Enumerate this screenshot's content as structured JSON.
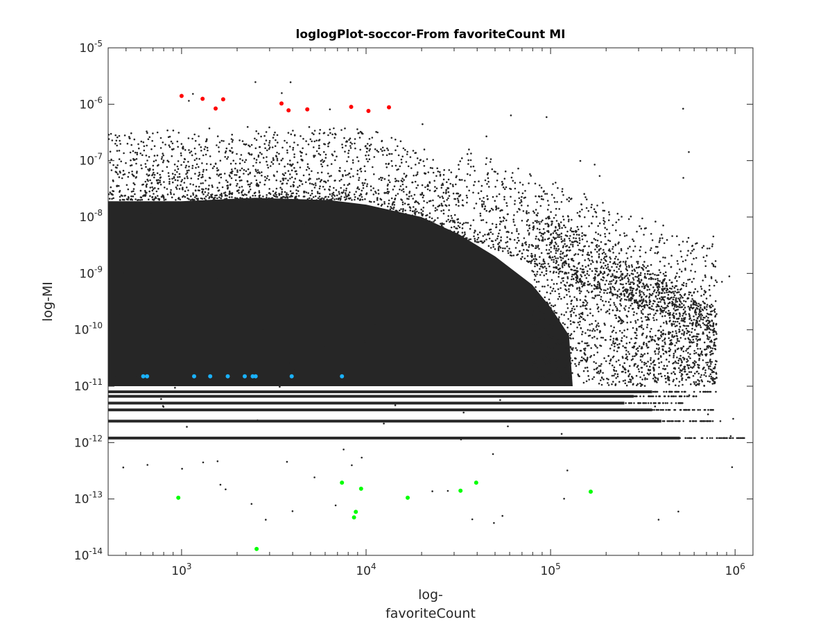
{
  "chart_data": {
    "type": "scatter",
    "title": "loglogPlot-soccor-From favoriteCount MI",
    "xlabel_line1": "log-",
    "xlabel_line2": "favoriteCount",
    "ylabel": "log-MI",
    "x_scale": "log",
    "y_scale": "log",
    "xlim": [
      400,
      1250000
    ],
    "ylim": [
      1e-14,
      1e-05
    ],
    "x_ticks": [
      {
        "value": 1000,
        "base": "10",
        "exp": "3"
      },
      {
        "value": 10000,
        "base": "10",
        "exp": "4"
      },
      {
        "value": 100000,
        "base": "10",
        "exp": "5"
      },
      {
        "value": 1000000,
        "base": "10",
        "exp": "6"
      }
    ],
    "y_ticks": [
      {
        "value": 1e-14,
        "base": "10",
        "exp": "-14"
      },
      {
        "value": 1e-13,
        "base": "10",
        "exp": "-13"
      },
      {
        "value": 1e-12,
        "base": "10",
        "exp": "-12"
      },
      {
        "value": 1e-11,
        "base": "10",
        "exp": "-11"
      },
      {
        "value": 1e-10,
        "base": "10",
        "exp": "-10"
      },
      {
        "value": 1e-09,
        "base": "10",
        "exp": "-9"
      },
      {
        "value": 1e-08,
        "base": "10",
        "exp": "-8"
      },
      {
        "value": 1e-07,
        "base": "10",
        "exp": "-7"
      },
      {
        "value": 1e-06,
        "base": "10",
        "exp": "-6"
      },
      {
        "value": 1e-05,
        "base": "10",
        "exp": "-5"
      }
    ],
    "grid": false,
    "colors": {
      "background": "#262626",
      "top": "#ff0000",
      "middle": "#1ab2ff",
      "bottom": "#00ff00"
    },
    "series": [
      {
        "color": "#ff0000",
        "points": [
          {
            "x": 1000,
            "y": 1.4e-06
          },
          {
            "x": 1300,
            "y": 1.25e-06
          },
          {
            "x": 1530,
            "y": 8.4e-07
          },
          {
            "x": 1680,
            "y": 1.22e-06
          },
          {
            "x": 3480,
            "y": 1.03e-06
          },
          {
            "x": 3800,
            "y": 7.8e-07
          },
          {
            "x": 4800,
            "y": 8.1e-07
          },
          {
            "x": 8300,
            "y": 9e-07
          },
          {
            "x": 10300,
            "y": 7.6e-07
          },
          {
            "x": 13300,
            "y": 8.8e-07
          }
        ]
      },
      {
        "color": "#1ab2ff",
        "points": [
          {
            "x": 620,
            "y": 1.5e-11
          },
          {
            "x": 650,
            "y": 1.5e-11
          },
          {
            "x": 1170,
            "y": 1.5e-11
          },
          {
            "x": 1430,
            "y": 1.5e-11
          },
          {
            "x": 1780,
            "y": 1.5e-11
          },
          {
            "x": 2200,
            "y": 1.5e-11
          },
          {
            "x": 2430,
            "y": 1.5e-11
          },
          {
            "x": 2520,
            "y": 1.5e-11
          },
          {
            "x": 3950,
            "y": 1.5e-11
          },
          {
            "x": 7400,
            "y": 1.5e-11
          }
        ]
      },
      {
        "color": "#00ff00",
        "points": [
          {
            "x": 960,
            "y": 1.05e-13
          },
          {
            "x": 2550,
            "y": 1.3e-14
          },
          {
            "x": 7400,
            "y": 1.95e-13
          },
          {
            "x": 8600,
            "y": 4.7e-14
          },
          {
            "x": 8800,
            "y": 5.9e-14
          },
          {
            "x": 9400,
            "y": 1.52e-13
          },
          {
            "x": 16800,
            "y": 1.05e-13
          },
          {
            "x": 32500,
            "y": 1.4e-13
          },
          {
            "x": 39500,
            "y": 1.95e-13
          },
          {
            "x": 165000,
            "y": 1.35e-13
          }
        ]
      }
    ]
  }
}
